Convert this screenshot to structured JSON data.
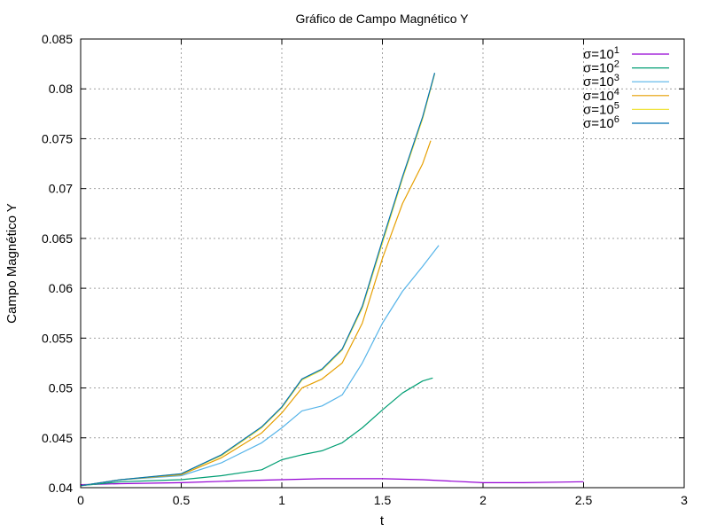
{
  "chart_data": {
    "type": "line",
    "title": "Gráfico de Campo Magnético Y",
    "xlabel": "t",
    "ylabel": "Campo Magnético Y",
    "xlim": [
      0,
      3
    ],
    "ylim": [
      0.04,
      0.085
    ],
    "xticks": [
      0,
      0.5,
      1,
      1.5,
      2,
      2.5,
      3
    ],
    "xtick_labels": [
      "0",
      "0.5",
      "1",
      "1.5",
      "2",
      "2.5",
      "3"
    ],
    "yticks": [
      0.04,
      0.045,
      0.05,
      0.055,
      0.06,
      0.065,
      0.07,
      0.075,
      0.08,
      0.085
    ],
    "ytick_labels": [
      "0.04",
      "0.045",
      "0.05",
      "0.055",
      "0.06",
      "0.065",
      "0.07",
      "0.075",
      "0.08",
      "0.085"
    ],
    "grid": true,
    "legend_position": "top-right",
    "series": [
      {
        "name_base": "σ=10",
        "name_exp": "1",
        "color": "#9400d3",
        "x": [
          0,
          0.2,
          0.5,
          0.8,
          1.0,
          1.2,
          1.5,
          1.7,
          2.0,
          2.2,
          2.5
        ],
        "y": [
          0.0403,
          0.0404,
          0.0405,
          0.0407,
          0.0408,
          0.0409,
          0.0409,
          0.0408,
          0.0405,
          0.0405,
          0.0406
        ]
      },
      {
        "name_base": "σ=10",
        "name_exp": "2",
        "color": "#009e73",
        "x": [
          0,
          0.2,
          0.5,
          0.7,
          0.9,
          1.0,
          1.1,
          1.2,
          1.3,
          1.4,
          1.5,
          1.6,
          1.7,
          1.75
        ],
        "y": [
          0.0402,
          0.0406,
          0.0408,
          0.0412,
          0.0418,
          0.0428,
          0.0433,
          0.0437,
          0.0445,
          0.046,
          0.0478,
          0.0495,
          0.0507,
          0.051
        ]
      },
      {
        "name_base": "σ=10",
        "name_exp": "3",
        "color": "#56b4e9",
        "x": [
          0,
          0.2,
          0.5,
          0.7,
          0.9,
          1.0,
          1.1,
          1.2,
          1.3,
          1.4,
          1.5,
          1.6,
          1.7,
          1.78
        ],
        "y": [
          0.0402,
          0.0408,
          0.0412,
          0.0425,
          0.0445,
          0.046,
          0.0477,
          0.0482,
          0.0493,
          0.0525,
          0.0565,
          0.0597,
          0.0622,
          0.0643
        ]
      },
      {
        "name_base": "σ=10",
        "name_exp": "4",
        "color": "#e69f00",
        "x": [
          0,
          0.2,
          0.5,
          0.7,
          0.9,
          1.0,
          1.1,
          1.2,
          1.3,
          1.4,
          1.5,
          1.6,
          1.7,
          1.74
        ],
        "y": [
          0.0402,
          0.0408,
          0.0413,
          0.043,
          0.0455,
          0.0475,
          0.05,
          0.0509,
          0.0525,
          0.0565,
          0.063,
          0.0685,
          0.0725,
          0.0748
        ]
      },
      {
        "name_base": "σ=10",
        "name_exp": "5",
        "color": "#f0e442",
        "x": [
          0,
          0.2,
          0.5,
          0.7,
          0.9,
          1.0,
          1.1,
          1.2,
          1.3,
          1.4,
          1.5,
          1.6,
          1.7,
          1.76
        ],
        "y": [
          0.0402,
          0.0408,
          0.0414,
          0.0432,
          0.046,
          0.048,
          0.0508,
          0.0518,
          0.0538,
          0.058,
          0.0645,
          0.071,
          0.077,
          0.0815
        ]
      },
      {
        "name_base": "σ=10",
        "name_exp": "6",
        "color": "#0072b2",
        "x": [
          0,
          0.2,
          0.5,
          0.7,
          0.9,
          1.0,
          1.1,
          1.2,
          1.3,
          1.4,
          1.5,
          1.6,
          1.7,
          1.76
        ],
        "y": [
          0.0402,
          0.0408,
          0.0414,
          0.0433,
          0.0461,
          0.0481,
          0.0509,
          0.0519,
          0.0539,
          0.0582,
          0.0648,
          0.0712,
          0.0772,
          0.0816
        ]
      }
    ]
  }
}
